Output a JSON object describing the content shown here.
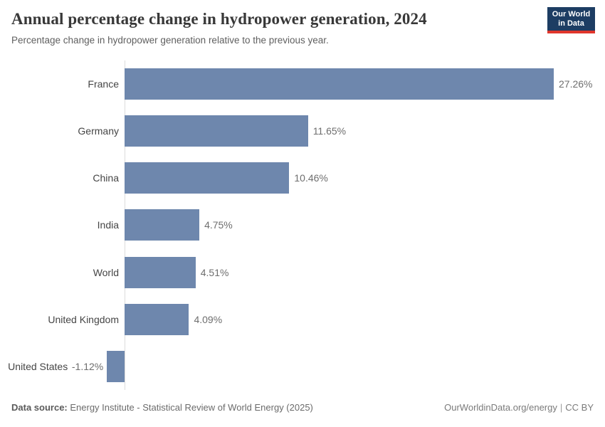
{
  "header": {
    "title": "Annual percentage change in hydropower generation, 2024",
    "subtitle": "Percentage change in hydropower generation relative to the previous year.",
    "logo": {
      "line1": "Our World",
      "line2": "in Data",
      "bg_color": "#1d3d63",
      "accent_color": "#e0362c"
    }
  },
  "chart_data": {
    "type": "bar",
    "orientation": "horizontal",
    "title": "Annual percentage change in hydropower generation, 2024",
    "xlabel": "",
    "ylabel": "",
    "categories": [
      "France",
      "Germany",
      "China",
      "India",
      "World",
      "United Kingdom",
      "United States"
    ],
    "values": [
      27.26,
      11.65,
      10.46,
      4.75,
      4.51,
      4.09,
      -1.12
    ],
    "value_labels": [
      "27.26%",
      "11.65%",
      "10.46%",
      "4.75%",
      "4.51%",
      "4.09%",
      "-1.12%"
    ],
    "value_suffix": "%",
    "xlim": [
      -2,
      28
    ],
    "grid": false,
    "legend": false,
    "bar_color": "#6e87ad",
    "axis_color": "#dcdcdc"
  },
  "footer": {
    "datasource_label": "Data source:",
    "datasource_value": " Energy Institute - Statistical Review of World Energy (2025)",
    "link": "OurWorldinData.org/energy",
    "separator": "|",
    "license": "CC BY"
  }
}
